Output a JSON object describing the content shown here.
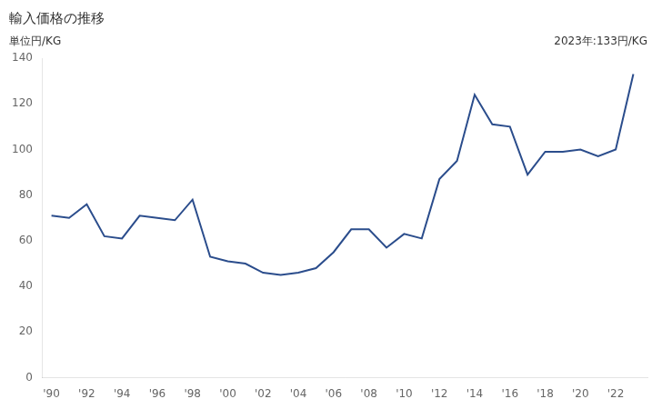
{
  "chart_data": {
    "type": "line",
    "title": "輸入価格の推移",
    "ylabel": "単位円/KG",
    "annotation": "2023年:133円/KG",
    "x": [
      1990,
      1991,
      1992,
      1993,
      1994,
      1995,
      1996,
      1997,
      1998,
      1999,
      2000,
      2001,
      2002,
      2003,
      2004,
      2005,
      2006,
      2007,
      2008,
      2009,
      2010,
      2011,
      2012,
      2013,
      2014,
      2015,
      2016,
      2017,
      2018,
      2019,
      2020,
      2021,
      2022,
      2023
    ],
    "values": [
      71,
      70,
      76,
      62,
      61,
      71,
      70,
      69,
      78,
      53,
      51,
      50,
      46,
      45,
      46,
      48,
      55,
      65,
      65,
      57,
      63,
      61,
      87,
      95,
      124,
      111,
      110,
      89,
      99,
      99,
      100,
      97,
      100,
      133
    ],
    "color": "#2b4d8c",
    "xlim": [
      1989.5,
      2023.8
    ],
    "xticks": [
      {
        "value": 1990,
        "label": "'90"
      },
      {
        "value": 1992,
        "label": "'92"
      },
      {
        "value": 1994,
        "label": "'94"
      },
      {
        "value": 1996,
        "label": "'96"
      },
      {
        "value": 1998,
        "label": "'98"
      },
      {
        "value": 2000,
        "label": "'00"
      },
      {
        "value": 2002,
        "label": "'02"
      },
      {
        "value": 2004,
        "label": "'04"
      },
      {
        "value": 2006,
        "label": "'06"
      },
      {
        "value": 2008,
        "label": "'08"
      },
      {
        "value": 2010,
        "label": "'10"
      },
      {
        "value": 2012,
        "label": "'12"
      },
      {
        "value": 2014,
        "label": "'14"
      },
      {
        "value": 2016,
        "label": "'16"
      },
      {
        "value": 2018,
        "label": "'18"
      },
      {
        "value": 2020,
        "label": "'20"
      },
      {
        "value": 2022,
        "label": "'22"
      }
    ],
    "ylim": [
      0,
      140
    ],
    "yticks": [
      0,
      20,
      40,
      60,
      80,
      100,
      120,
      140
    ],
    "grid": false
  }
}
